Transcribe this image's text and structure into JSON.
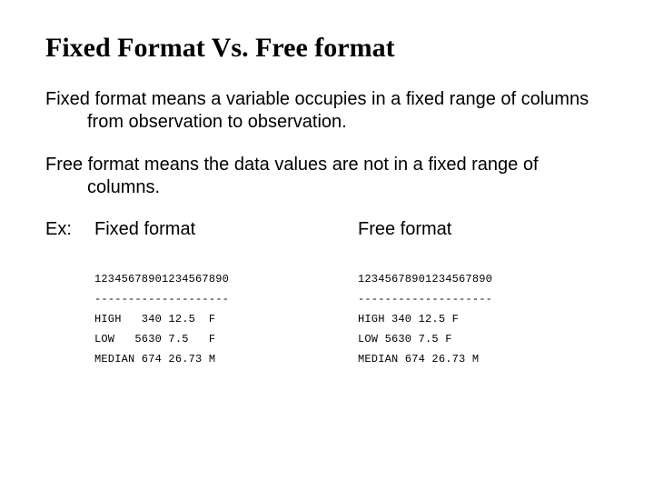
{
  "colors": {
    "background": "#ffffff",
    "text": "#000000"
  },
  "typography": {
    "title_font": "Georgia/serif",
    "title_size_pt": 22,
    "title_weight": "bold",
    "body_font": "Verdana/sans-serif",
    "body_size_pt": 15,
    "mono_font": "Courier New/monospace",
    "mono_size_pt": 9
  },
  "title": "Fixed Format Vs. Free format",
  "para1": "Fixed format means a variable occupies in a fixed range of columns from observation to observation.",
  "para2": "Free format means the data values are not in a fixed range of columns.",
  "example": {
    "label": "Ex:",
    "fixed": {
      "heading": "Fixed format",
      "type": "data-column-listing",
      "lines": [
        "12345678901234567890",
        "--------------------",
        "HIGH   340 12.5  F",
        "LOW   5630 7.5   F",
        "MEDIAN 674 26.73 M"
      ]
    },
    "free": {
      "heading": "Free format",
      "type": "data-column-listing",
      "lines": [
        "12345678901234567890",
        "--------------------",
        "HIGH 340 12.5 F",
        "LOW 5630 7.5 F",
        "MEDIAN 674 26.73 M"
      ]
    }
  }
}
